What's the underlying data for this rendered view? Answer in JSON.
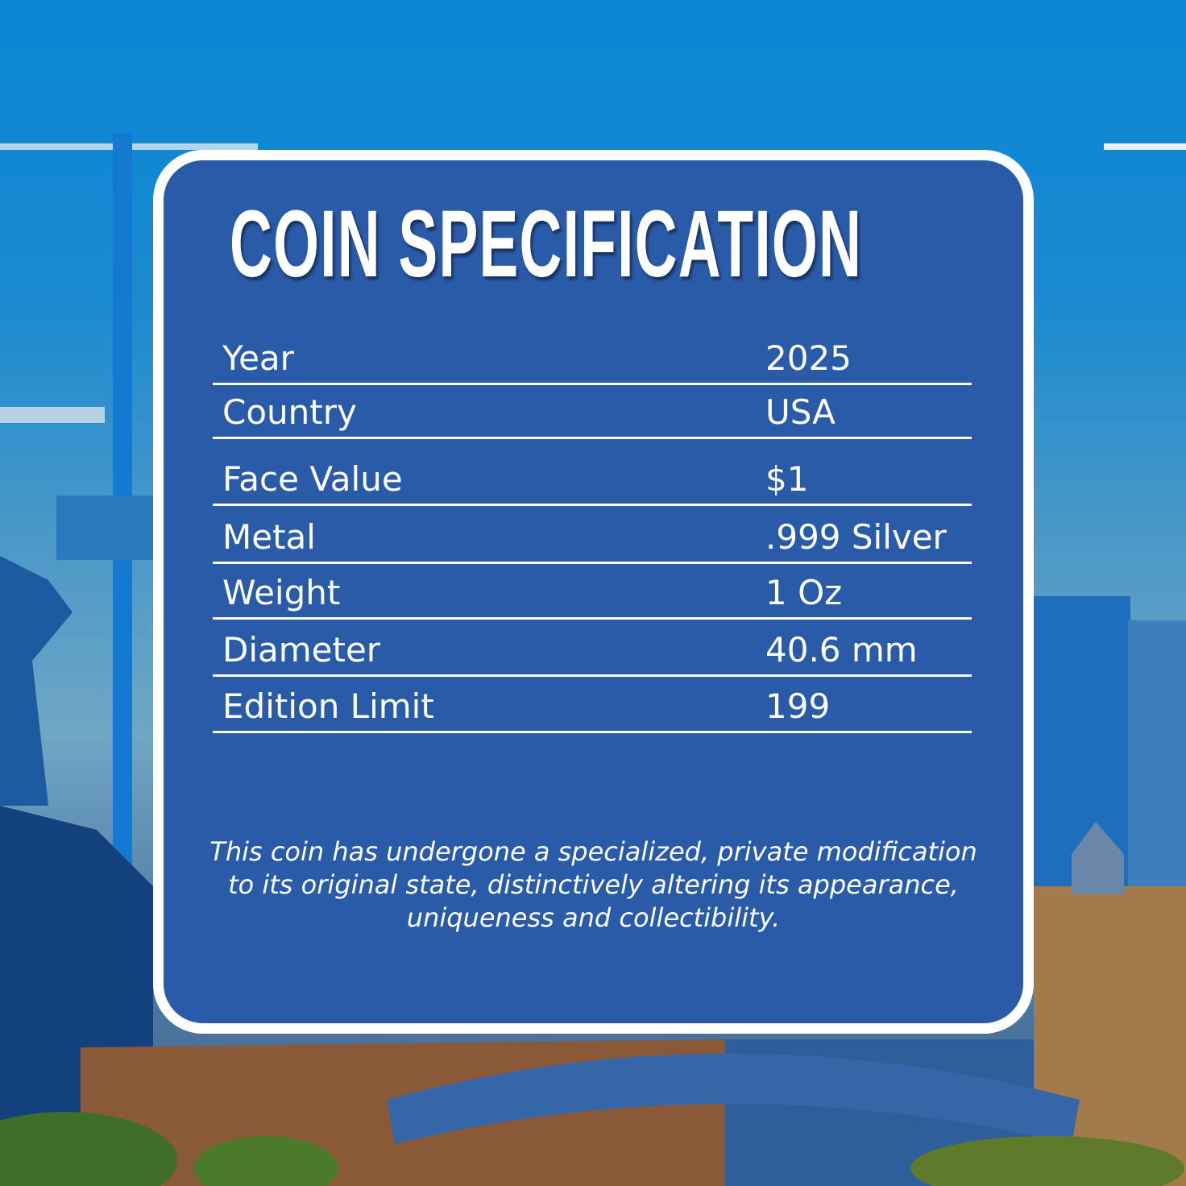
{
  "title": "COIN SPECIFICATION",
  "specs": [
    {
      "label": "Year",
      "value": "2025"
    },
    {
      "label": "Country",
      "value": "USA"
    },
    {
      "label": "Face Value",
      "value": "$1"
    },
    {
      "label": "Metal",
      "value": ".999 Silver"
    },
    {
      "label": "Weight",
      "value": "1 Oz"
    },
    {
      "label": "Diameter",
      "value": "40.6 mm"
    },
    {
      "label": "Edition Limit",
      "value": "199"
    }
  ],
  "note": "This coin has undergone a specialized, private modification to its original state, distinctively altering its appearance, uniqueness and collectibility.",
  "colors": {
    "card": "#2a5ba8",
    "border": "#ffffff",
    "sky": "#0a86d4"
  }
}
